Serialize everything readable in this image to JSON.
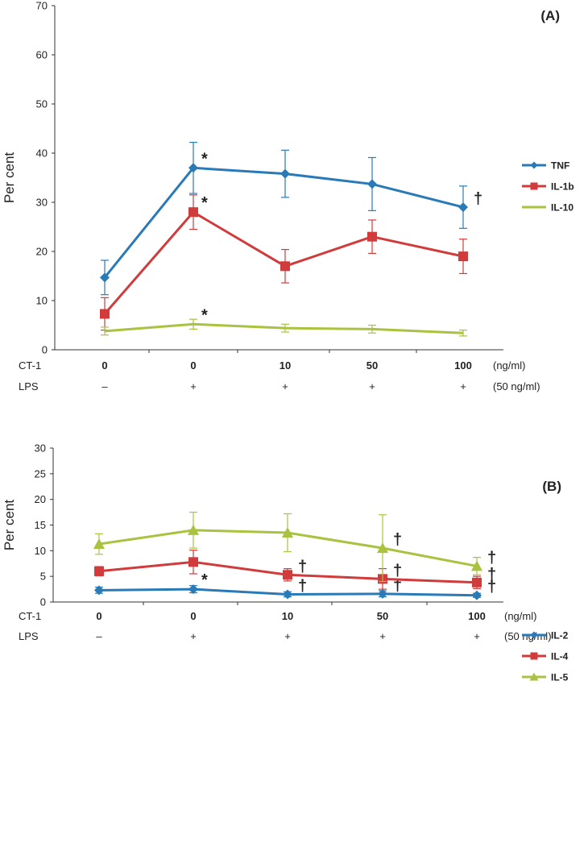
{
  "colors": {
    "tnf": "#2a7ab8",
    "il1b": "#d13b3b",
    "il10": "#a9c23f",
    "il2": "#2a7ab8",
    "il4": "#d13b3b",
    "il5": "#a9c23f",
    "axis": "#333333"
  },
  "chart_data": [
    {
      "type": "line",
      "panel_label": "(A)",
      "ylabel": "Per cent",
      "ylim": [
        0,
        70
      ],
      "yticks": [
        "0",
        "10",
        "20",
        "30",
        "40",
        "50",
        "60",
        "70"
      ],
      "categories": [
        "0",
        "0",
        "10",
        "50",
        "100"
      ],
      "row_labels": {
        "ct1": "CT-1",
        "lps": "LPS",
        "ct1_unit": "(ng/ml)",
        "lps_unit": "(50 ng/ml)"
      },
      "lps": [
        "–",
        "+",
        "+",
        "+",
        "+"
      ],
      "series": [
        {
          "name": "TNF",
          "color_key": "tnf",
          "marker": "diamond",
          "values": [
            14.7,
            37,
            35.8,
            33.7,
            29
          ],
          "errors": [
            3.5,
            5.2,
            4.8,
            5.4,
            4.3
          ],
          "annotations": [
            "",
            "*",
            "",
            "",
            "†"
          ]
        },
        {
          "name": "IL-1b",
          "color_key": "il1b",
          "marker": "square",
          "values": [
            7.3,
            28,
            17,
            23,
            19
          ],
          "errors": [
            3.3,
            3.5,
            3.4,
            3.4,
            3.5
          ],
          "annotations": [
            "",
            "*",
            "",
            "",
            ""
          ]
        },
        {
          "name": "IL-10",
          "color_key": "il10",
          "marker": "none",
          "values": [
            3.8,
            5.2,
            4.4,
            4.2,
            3.4
          ],
          "errors": [
            0.8,
            1.0,
            0.8,
            0.8,
            0.6
          ],
          "annotations": [
            "",
            "*",
            "",
            "",
            ""
          ]
        }
      ]
    },
    {
      "type": "line",
      "panel_label": "(B)",
      "ylabel": "Per cent",
      "ylim": [
        0,
        30
      ],
      "yticks": [
        "0",
        "5",
        "10",
        "15",
        "20",
        "25",
        "30"
      ],
      "categories": [
        "0",
        "0",
        "10",
        "50",
        "100"
      ],
      "row_labels": {
        "ct1": "CT-1",
        "lps": "LPS",
        "ct1_unit": "(ng/ml)",
        "lps_unit": "(50 ng/ml)"
      },
      "lps": [
        "–",
        "+",
        "+",
        "+",
        "+"
      ],
      "series": [
        {
          "name": "IL-2",
          "color_key": "il2",
          "marker": "diamond",
          "values": [
            2.3,
            2.5,
            1.5,
            1.6,
            1.3
          ],
          "errors": [
            0.6,
            0.7,
            0.5,
            0.6,
            0.4
          ],
          "annotations": [
            "",
            "*",
            "†",
            "†",
            "†"
          ]
        },
        {
          "name": "IL-4",
          "color_key": "il4",
          "marker": "square",
          "values": [
            6.0,
            7.8,
            5.3,
            4.5,
            3.8
          ],
          "errors": [
            0.9,
            2.3,
            1.2,
            2.0,
            1.2
          ],
          "annotations": [
            "",
            "",
            "†",
            "†",
            "†"
          ]
        },
        {
          "name": "IL-5",
          "color_key": "il5",
          "marker": "triangle",
          "values": [
            11.3,
            14.0,
            13.5,
            10.5,
            7.0
          ],
          "errors": [
            2.0,
            3.5,
            3.7,
            6.5,
            1.7
          ],
          "annotations": [
            "",
            "",
            "",
            "†",
            "†"
          ]
        }
      ]
    }
  ]
}
